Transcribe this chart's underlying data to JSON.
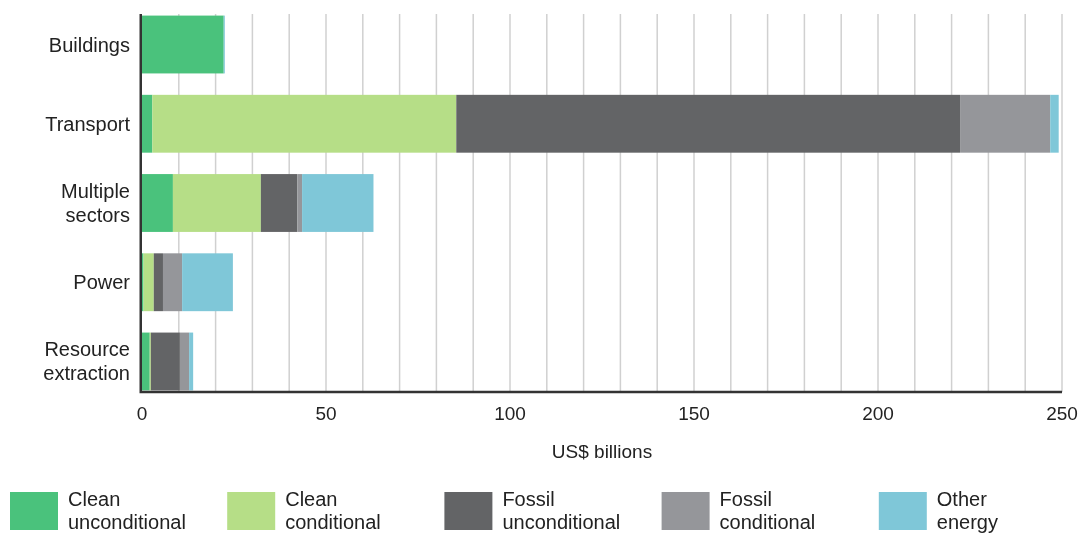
{
  "chart_data": {
    "type": "bar",
    "orientation": "horizontal",
    "stacked": true,
    "xlabel": "US$ billions",
    "categories": [
      "Buildings",
      "Transport",
      "Multiple sectors",
      "Power",
      "Resource extraction"
    ],
    "series": [
      {
        "name": "Clean unconditional",
        "color": "#4ac27c",
        "values": [
          22.2,
          2.8,
          8.4,
          0.4,
          2.1
        ]
      },
      {
        "name": "Clean conditional",
        "color": "#b6de87",
        "values": [
          null,
          82.6,
          23.9,
          2.8,
          0.3
        ]
      },
      {
        "name": "Fossil unconditional",
        "color": "#636466",
        "values": [
          null,
          136.9,
          9.9,
          2.5,
          7.9
        ]
      },
      {
        "name": "Fossil conditional",
        "color": "#95969a",
        "values": [
          null,
          24.5,
          1.3,
          5.2,
          2.5
        ]
      },
      {
        "name": "Other energy",
        "color": "#7fc7d8",
        "values": [
          0.3,
          2.3,
          19.4,
          13.8,
          1.1
        ]
      }
    ],
    "xlim": [
      0,
      250
    ],
    "xticks": [
      0,
      {
        "value": 10,
        "label": null
      },
      {
        "value": 20,
        "label": null
      },
      {
        "value": 30,
        "label": null
      },
      {
        "value": 40,
        "label": null
      },
      50,
      {
        "value": 60,
        "label": null
      },
      {
        "value": 70,
        "label": null
      },
      {
        "value": 80,
        "label": null
      },
      {
        "value": 90,
        "label": null
      },
      100,
      {
        "value": 110,
        "label": null
      },
      {
        "value": 120,
        "label": null
      },
      {
        "value": 130,
        "label": null
      },
      {
        "value": 140,
        "label": null
      },
      150,
      {
        "value": 160,
        "label": null
      },
      {
        "value": 170,
        "label": null
      },
      {
        "value": 180,
        "label": null
      },
      {
        "value": 190,
        "label": null
      },
      200,
      {
        "value": 210,
        "label": null
      },
      {
        "value": 220,
        "label": null
      },
      {
        "value": 230,
        "label": null
      },
      {
        "value": 240,
        "label": null
      },
      250
    ],
    "grid": "x",
    "legend": "bottom"
  }
}
